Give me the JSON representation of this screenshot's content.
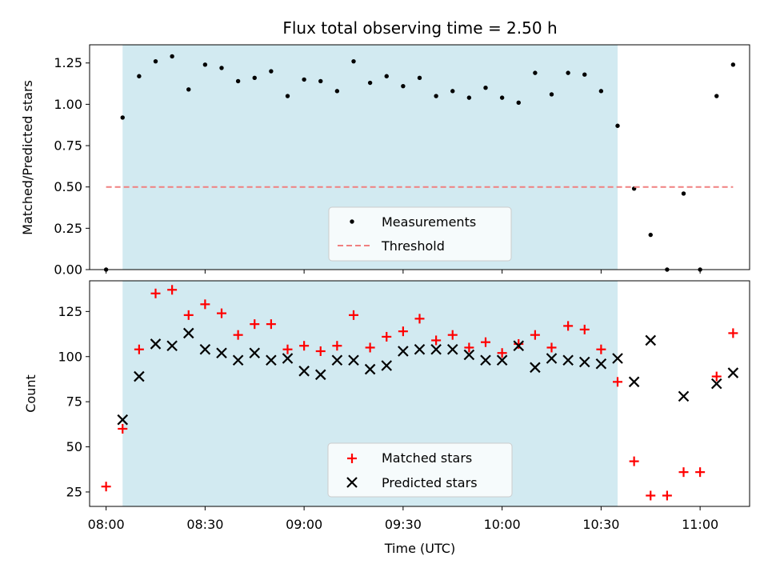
{
  "chart_data": [
    {
      "type": "scatter",
      "title": "Flux total observing time = 2.50 h",
      "xlabel": "",
      "ylabel": "Matched/Predicted stars",
      "x_unit": "time (UTC)",
      "xlim": [
        "07:55",
        "11:15"
      ],
      "ylim": [
        0,
        1.36
      ],
      "yticks": [
        "0.00",
        "0.25",
        "0.50",
        "0.75",
        "1.00",
        "1.25"
      ],
      "shaded_span": {
        "start": "08:05",
        "end": "10:35",
        "color": "#add8e6"
      },
      "legend": {
        "position": "bottom-center",
        "entries": [
          "Measurements",
          "Threshold"
        ]
      },
      "series": [
        {
          "name": "Measurements",
          "color": "#000000",
          "marker": "dot",
          "x": [
            "08:00",
            "08:05",
            "08:10",
            "08:15",
            "08:20",
            "08:25",
            "08:30",
            "08:35",
            "08:40",
            "08:45",
            "08:50",
            "08:55",
            "09:00",
            "09:05",
            "09:10",
            "09:15",
            "09:20",
            "09:25",
            "09:30",
            "09:35",
            "09:40",
            "09:45",
            "09:50",
            "09:55",
            "10:00",
            "10:05",
            "10:10",
            "10:15",
            "10:20",
            "10:25",
            "10:30",
            "10:35",
            "10:40",
            "10:45",
            "10:50",
            "10:55",
            "11:00",
            "11:05",
            "11:10"
          ],
          "y": [
            0.0,
            0.92,
            1.17,
            1.26,
            1.29,
            1.09,
            1.24,
            1.22,
            1.14,
            1.16,
            1.2,
            1.05,
            1.15,
            1.14,
            1.08,
            1.26,
            1.13,
            1.17,
            1.11,
            1.16,
            1.05,
            1.08,
            1.04,
            1.1,
            1.04,
            1.01,
            1.19,
            1.06,
            1.19,
            1.18,
            1.08,
            0.87,
            0.49,
            0.21,
            0.0,
            0.46,
            0.0,
            1.05,
            1.24
          ]
        },
        {
          "name": "Threshold",
          "color": "#f08080",
          "style": "dashed",
          "x": [
            "08:00",
            "11:10"
          ],
          "y": [
            0.5,
            0.5
          ]
        }
      ]
    },
    {
      "type": "scatter",
      "title": "",
      "xlabel": "Time (UTC)",
      "ylabel": "Count",
      "xlim": [
        "07:55",
        "11:15"
      ],
      "ylim": [
        17,
        142
      ],
      "xticks": [
        "08:00",
        "08:30",
        "09:00",
        "09:30",
        "10:00",
        "10:30",
        "11:00"
      ],
      "yticks": [
        "25",
        "50",
        "75",
        "100",
        "125"
      ],
      "shaded_span": {
        "start": "08:05",
        "end": "10:35",
        "color": "#add8e6"
      },
      "legend": {
        "position": "bottom-center",
        "entries": [
          "Matched stars",
          "Predicted stars"
        ]
      },
      "series": [
        {
          "name": "Matched stars",
          "color": "#ff0000",
          "marker": "plus",
          "x": [
            "08:00",
            "08:05",
            "08:10",
            "08:15",
            "08:20",
            "08:25",
            "08:30",
            "08:35",
            "08:40",
            "08:45",
            "08:50",
            "08:55",
            "09:00",
            "09:05",
            "09:10",
            "09:15",
            "09:20",
            "09:25",
            "09:30",
            "09:35",
            "09:40",
            "09:45",
            "09:50",
            "09:55",
            "10:00",
            "10:05",
            "10:10",
            "10:15",
            "10:20",
            "10:25",
            "10:30",
            "10:35",
            "10:40",
            "10:45",
            "10:50",
            "10:55",
            "11:00",
            "11:05",
            "11:10"
          ],
          "y": [
            28,
            60,
            104,
            135,
            137,
            123,
            129,
            124,
            112,
            118,
            118,
            104,
            106,
            103,
            106,
            123,
            105,
            111,
            114,
            121,
            109,
            112,
            105,
            108,
            102,
            107,
            112,
            105,
            117,
            115,
            104,
            86,
            42,
            23,
            23,
            36,
            36,
            89,
            113
          ]
        },
        {
          "name": "Predicted stars",
          "color": "#000000",
          "marker": "x",
          "x": [
            "08:05",
            "08:10",
            "08:15",
            "08:20",
            "08:25",
            "08:30",
            "08:35",
            "08:40",
            "08:45",
            "08:50",
            "08:55",
            "09:00",
            "09:05",
            "09:10",
            "09:15",
            "09:20",
            "09:25",
            "09:30",
            "09:35",
            "09:40",
            "09:45",
            "09:50",
            "09:55",
            "10:00",
            "10:05",
            "10:10",
            "10:15",
            "10:20",
            "10:25",
            "10:30",
            "10:35",
            "10:40",
            "10:45",
            "10:55",
            "11:05",
            "11:10"
          ],
          "y": [
            65,
            89,
            107,
            106,
            113,
            104,
            102,
            98,
            102,
            98,
            99,
            92,
            90,
            98,
            98,
            93,
            95,
            103,
            104,
            104,
            104,
            101,
            98,
            98,
            106,
            94,
            99,
            98,
            97,
            96,
            99,
            86,
            109,
            78,
            85,
            91
          ]
        }
      ]
    }
  ]
}
